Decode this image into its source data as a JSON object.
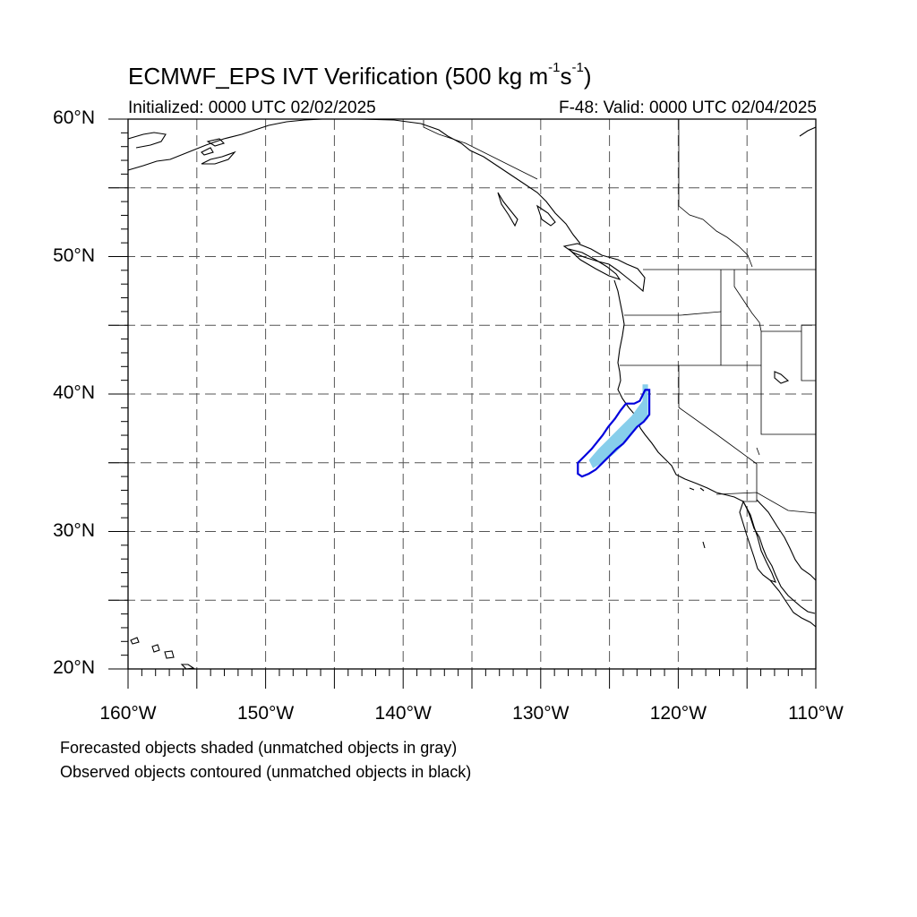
{
  "title": {
    "prefix": "ECMWF_EPS IVT Verification (500 kg m",
    "sup1": "-1",
    "mid": "s",
    "sup2": "-1",
    "suffix": ")"
  },
  "initialized_label": "Initialized: 0000 UTC 02/02/2025",
  "valid_label": "F-48: Valid: 0000 UTC 02/04/2025",
  "map": {
    "projection": "cylindrical equidistant",
    "lon_range": [
      -160,
      -110
    ],
    "lat_range": [
      20,
      60
    ],
    "grid_lines_lon": [
      -155,
      -150,
      -145,
      -140,
      -135,
      -130,
      -125,
      -120,
      -115
    ],
    "grid_lines_lat": [
      25,
      30,
      35,
      40,
      45,
      50,
      55
    ],
    "grid_style": "dashed gray",
    "lat_labels": [
      {
        "value": 60,
        "text": "60°N"
      },
      {
        "value": 50,
        "text": "50°N"
      },
      {
        "value": 40,
        "text": "40°N"
      },
      {
        "value": 30,
        "text": "30°N"
      },
      {
        "value": 20,
        "text": "20°N"
      }
    ],
    "lon_labels": [
      {
        "value": -160,
        "text": "160°W"
      },
      {
        "value": -150,
        "text": "150°W"
      },
      {
        "value": -140,
        "text": "140°W"
      },
      {
        "value": -130,
        "text": "130°W"
      },
      {
        "value": -120,
        "text": "120°W"
      },
      {
        "value": -110,
        "text": "110°W"
      }
    ],
    "forecast_object": {
      "color": "#87ceeb",
      "matched": true,
      "polygon_lonlat": [
        [
          -122.2,
          40.7
        ],
        [
          -122.2,
          38.2
        ],
        [
          -123.0,
          37.5
        ],
        [
          -123.8,
          36.5
        ],
        [
          -124.5,
          35.8
        ],
        [
          -125.2,
          35.2
        ],
        [
          -126.2,
          34.6
        ],
        [
          -126.5,
          35.2
        ],
        [
          -125.8,
          36.0
        ],
        [
          -125.0,
          36.8
        ],
        [
          -124.2,
          37.6
        ],
        [
          -123.4,
          38.4
        ],
        [
          -122.6,
          39.5
        ],
        [
          -122.6,
          40.7
        ]
      ]
    },
    "observed_object": {
      "color": "#0000dd",
      "matched": true,
      "polygon_lonlat": [
        [
          -122.1,
          40.3
        ],
        [
          -122.1,
          38.5
        ],
        [
          -122.5,
          38.0
        ],
        [
          -123.0,
          37.6
        ],
        [
          -123.5,
          37.0
        ],
        [
          -124.0,
          36.4
        ],
        [
          -124.5,
          36.0
        ],
        [
          -125.0,
          35.5
        ],
        [
          -125.5,
          35.0
        ],
        [
          -126.0,
          34.5
        ],
        [
          -126.5,
          34.2
        ],
        [
          -127.0,
          34.0
        ],
        [
          -127.3,
          34.2
        ],
        [
          -127.3,
          35.0
        ],
        [
          -126.8,
          35.5
        ],
        [
          -126.3,
          36.0
        ],
        [
          -125.9,
          36.5
        ],
        [
          -125.5,
          37.0
        ],
        [
          -125.1,
          37.6
        ],
        [
          -124.6,
          38.2
        ],
        [
          -124.2,
          38.8
        ],
        [
          -123.8,
          39.3
        ],
        [
          -123.2,
          39.3
        ],
        [
          -122.8,
          39.5
        ],
        [
          -122.4,
          40.3
        ]
      ]
    }
  },
  "legend_notes": [
    "Forecasted objects shaded (unmatched objects in gray)",
    "Observed objects contoured (unmatched objects in black)"
  ]
}
